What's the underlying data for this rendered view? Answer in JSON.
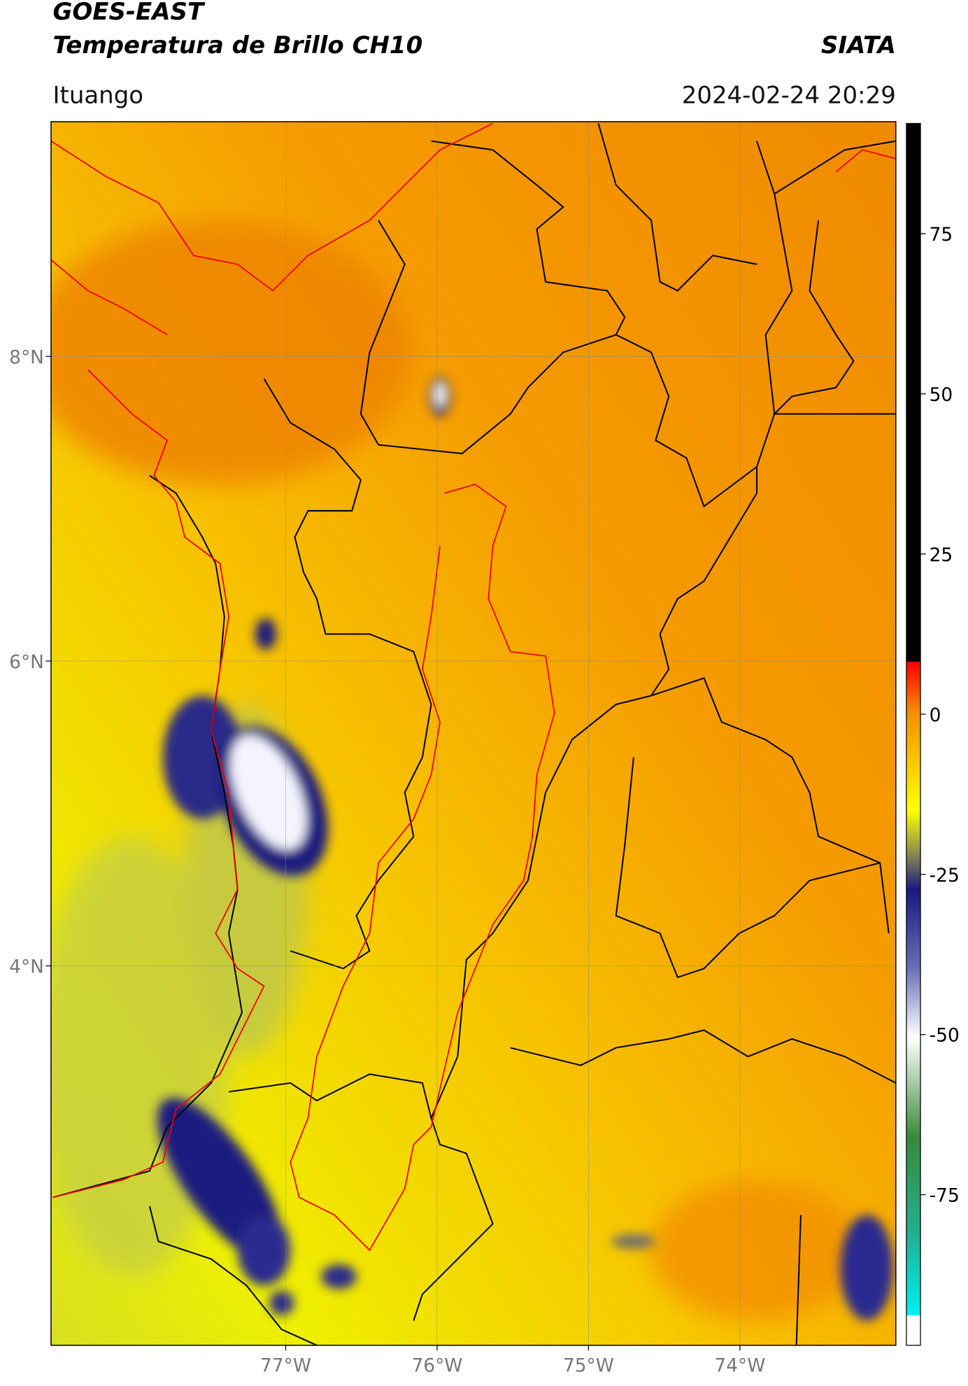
{
  "header": {
    "title": "GOES-EAST",
    "subtitle": "Temperatura de Brillo CH10",
    "org": "SIATA",
    "location": "Ituango",
    "datetime": "2024-02-24 20:29"
  },
  "map": {
    "lon_range": [
      -78.55,
      -72.97
    ],
    "lat_range": [
      1.51,
      9.54
    ],
    "lon_ticks": [
      {
        "value": -77,
        "label": "77°W"
      },
      {
        "value": -76,
        "label": "76°W"
      },
      {
        "value": -75,
        "label": "75°W"
      },
      {
        "value": -74,
        "label": "74°W"
      }
    ],
    "lat_ticks": [
      {
        "value": 8,
        "label": "8°N"
      },
      {
        "value": 6,
        "label": "6°N"
      },
      {
        "value": 4,
        "label": "4°N"
      }
    ]
  },
  "colorbar": {
    "limits": [
      -98.5,
      92.2
    ],
    "ticks": [
      75,
      50,
      25,
      0,
      -25,
      -50,
      -75
    ]
  }
}
